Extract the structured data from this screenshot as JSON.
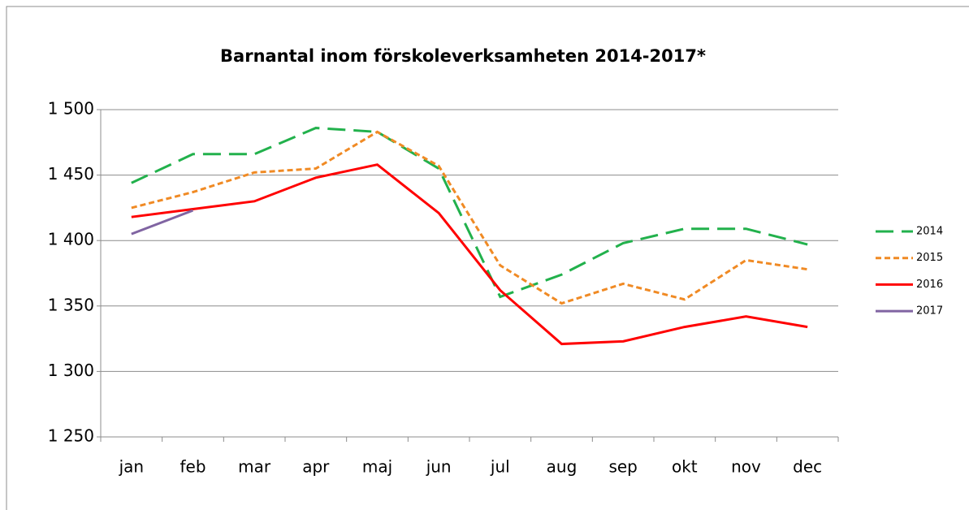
{
  "chart_data": {
    "type": "line",
    "title": "Barnantal inom förskoleverksamheten 2014-2017*",
    "categories": [
      "jan",
      "feb",
      "mar",
      "apr",
      "maj",
      "jun",
      "jul",
      "aug",
      "sep",
      "okt",
      "nov",
      "dec"
    ],
    "series": [
      {
        "name": "2014",
        "color": "#22b14c",
        "dash": "long-dash",
        "values": [
          1444,
          1466,
          1466,
          1486,
          1483,
          1455,
          1357,
          1374,
          1398,
          1409,
          1409,
          1397
        ]
      },
      {
        "name": "2015",
        "color": "#f08a24",
        "dash": "short-dash",
        "values": [
          1425,
          1437,
          1452,
          1455,
          1483,
          1457,
          1381,
          1352,
          1367,
          1355,
          1385,
          1378
        ]
      },
      {
        "name": "2016",
        "color": "#ff0000",
        "dash": "solid",
        "values": [
          1418,
          1424,
          1430,
          1448,
          1458,
          1421,
          1362,
          1321,
          1323,
          1334,
          1342,
          1334
        ]
      },
      {
        "name": "2017",
        "color": "#8064a2",
        "dash": "solid",
        "values": [
          1405,
          1423,
          null,
          null,
          null,
          null,
          null,
          null,
          null,
          null,
          null,
          null
        ]
      }
    ],
    "ylim": [
      1250,
      1500
    ],
    "yticks": [
      {
        "value": 1250,
        "label": "1 250"
      },
      {
        "value": 1300,
        "label": "1 300"
      },
      {
        "value": 1350,
        "label": "1 350"
      },
      {
        "value": 1400,
        "label": "1 400"
      },
      {
        "value": 1450,
        "label": "1 450"
      },
      {
        "value": 1500,
        "label": "1 500"
      }
    ],
    "grid": true,
    "legend": "right"
  }
}
